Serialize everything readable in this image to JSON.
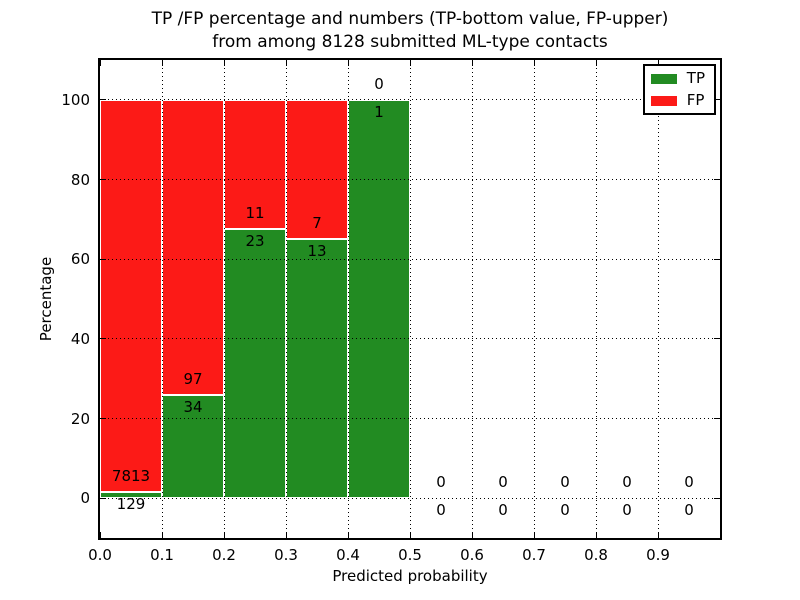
{
  "chart_data": {
    "type": "bar",
    "stacked": true,
    "title": "TP /FP percentage and numbers (TP-bottom value, FP-upper)\nfrom among 8128 submitted ML-type contacts",
    "title_lines": [
      "TP /FP percentage and numbers (TP-bottom value, FP-upper)",
      "from among 8128 submitted ML-type contacts"
    ],
    "xlabel": "Predicted probability",
    "ylabel": "Percentage",
    "xlim": [
      0.0,
      1.0
    ],
    "ylim": [
      -10,
      110
    ],
    "grid": true,
    "grid_style": "dotted",
    "x_tick_labels": [
      "0.0",
      "0.1",
      "0.2",
      "0.3",
      "0.4",
      "0.5",
      "0.6",
      "0.7",
      "0.8",
      "0.9"
    ],
    "y_tick_values": [
      0,
      20,
      40,
      60,
      80,
      100
    ],
    "bin_width": 0.1,
    "total_contacts": 8128,
    "annotation_note": "TP count shown below segment boundary, FP count shown above",
    "bins": [
      {
        "range": [
          0.0,
          0.1
        ],
        "tp_count": 129,
        "fp_count": 7813,
        "tp_pct": 1.6,
        "fp_pct": 98.4
      },
      {
        "range": [
          0.1,
          0.2
        ],
        "tp_count": 34,
        "fp_count": 97,
        "tp_pct": 26.0,
        "fp_pct": 74.0
      },
      {
        "range": [
          0.2,
          0.3
        ],
        "tp_count": 23,
        "fp_count": 11,
        "tp_pct": 67.6,
        "fp_pct": 32.4
      },
      {
        "range": [
          0.3,
          0.4
        ],
        "tp_count": 13,
        "fp_count": 7,
        "tp_pct": 65.0,
        "fp_pct": 35.0
      },
      {
        "range": [
          0.4,
          0.5
        ],
        "tp_count": 1,
        "fp_count": 0,
        "tp_pct": 100.0,
        "fp_pct": 0.0
      },
      {
        "range": [
          0.5,
          0.6
        ],
        "tp_count": 0,
        "fp_count": 0,
        "tp_pct": 0.0,
        "fp_pct": 0.0
      },
      {
        "range": [
          0.6,
          0.7
        ],
        "tp_count": 0,
        "fp_count": 0,
        "tp_pct": 0.0,
        "fp_pct": 0.0
      },
      {
        "range": [
          0.7,
          0.8
        ],
        "tp_count": 0,
        "fp_count": 0,
        "tp_pct": 0.0,
        "fp_pct": 0.0
      },
      {
        "range": [
          0.8,
          0.9
        ],
        "tp_count": 0,
        "fp_count": 0,
        "tp_pct": 0.0,
        "fp_pct": 0.0
      },
      {
        "range": [
          0.9,
          1.0
        ],
        "tp_count": 0,
        "fp_count": 0,
        "tp_pct": 0.0,
        "fp_pct": 0.0
      }
    ],
    "legend": {
      "position": "upper right",
      "items": [
        {
          "label": "TP",
          "color": "#228b22"
        },
        {
          "label": "FP",
          "color": "#fc1a17"
        }
      ]
    },
    "colors": {
      "tp": "#228b22",
      "fp": "#fc1a17",
      "bar_edge": "#ffffff",
      "grid": "#000000",
      "axes_frame": "#000000",
      "background": "#ffffff"
    }
  }
}
